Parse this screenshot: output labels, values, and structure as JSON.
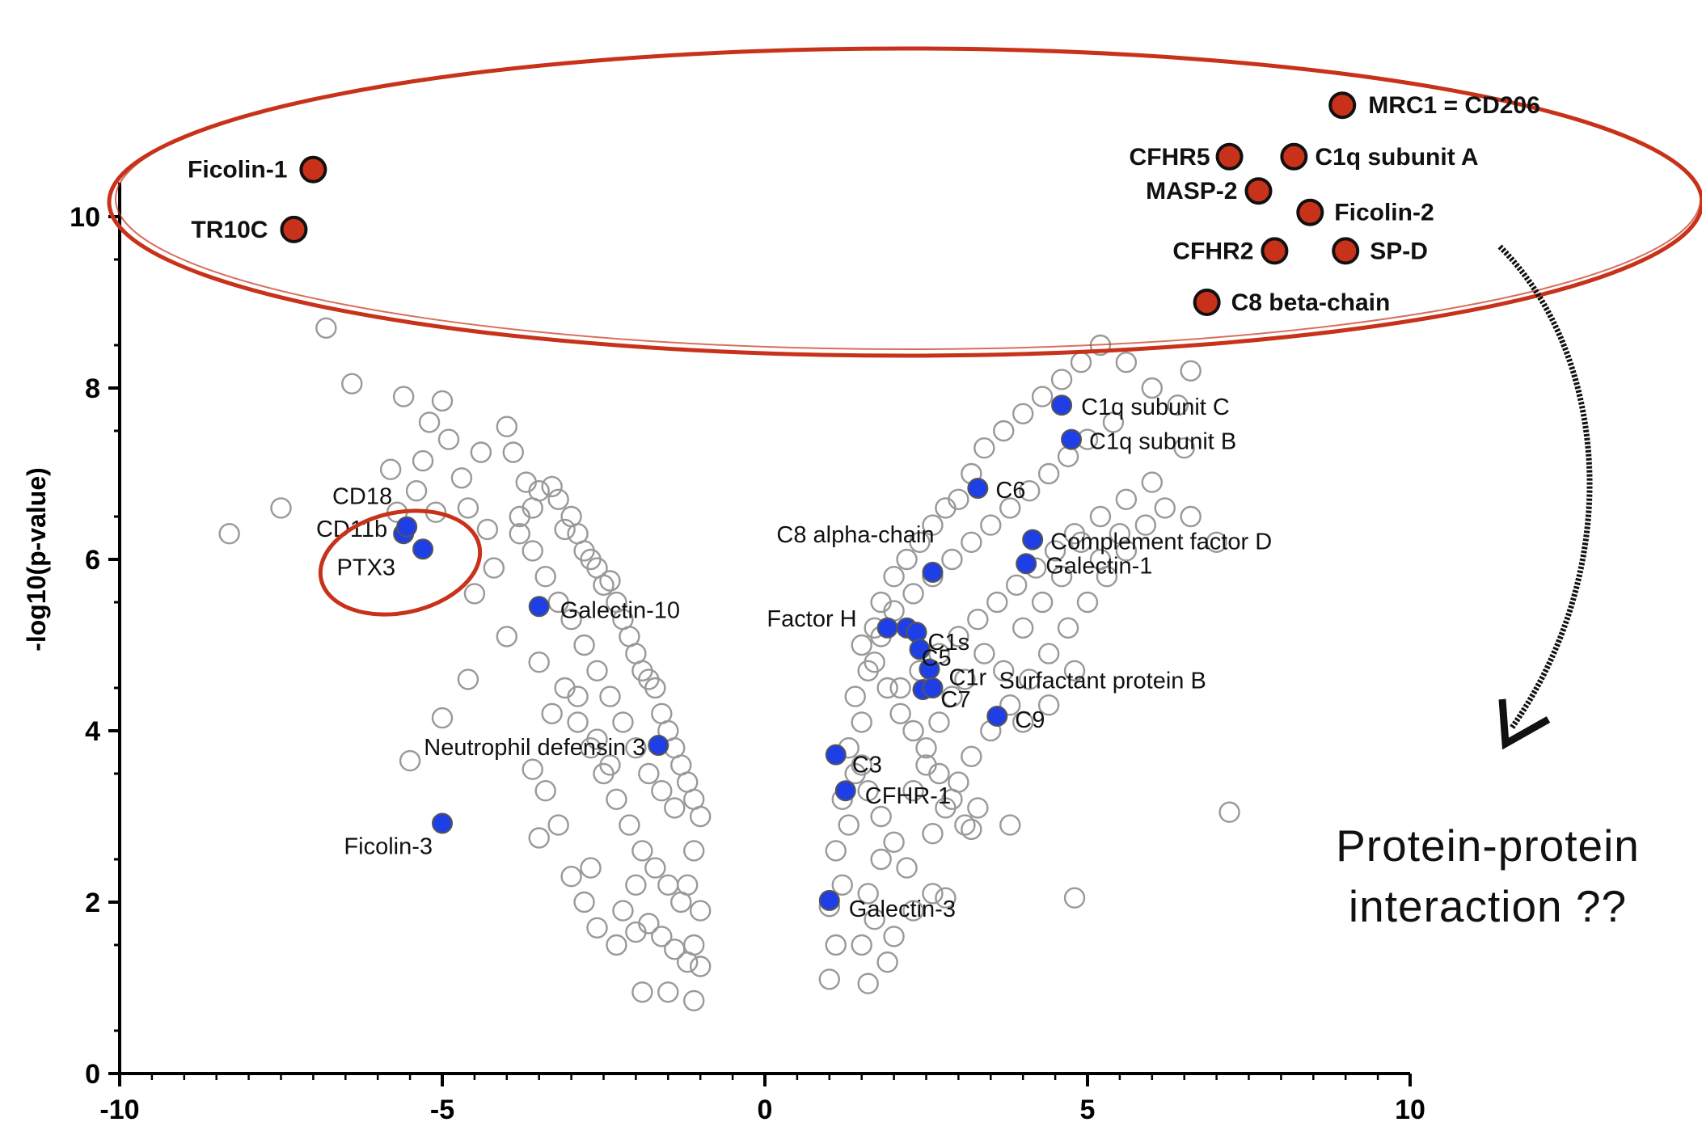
{
  "chart_data": {
    "type": "scatter",
    "title": "",
    "xlabel": "",
    "ylabel": "-log10(p-value)",
    "xlim": [
      -10,
      10
    ],
    "ylim": [
      0,
      12
    ],
    "xticks": [
      -10,
      -5,
      0,
      5,
      10
    ],
    "yticks": [
      0,
      2,
      4,
      6,
      8,
      10
    ],
    "xtick_labels": [
      "-10",
      "-5",
      "0",
      "5",
      "10"
    ],
    "ytick_labels": [
      "0",
      "2",
      "4",
      "6",
      "8",
      "10"
    ],
    "grid": false,
    "series": [
      {
        "color": "#999999",
        "style": "open",
        "points": [
          [
            -8.3,
            6.3
          ],
          [
            -7.5,
            6.6
          ],
          [
            -6.8,
            8.7
          ],
          [
            -6.4,
            8.05
          ],
          [
            -5.8,
            7.05
          ],
          [
            -5.6,
            7.9
          ],
          [
            -5.4,
            6.8
          ],
          [
            -5.2,
            7.6
          ],
          [
            -5.0,
            7.85
          ],
          [
            -4.9,
            7.4
          ],
          [
            -5.3,
            7.15
          ],
          [
            -5.7,
            6.55
          ],
          [
            -5.1,
            6.55
          ],
          [
            -4.7,
            6.95
          ],
          [
            -4.6,
            6.6
          ],
          [
            -4.4,
            7.25
          ],
          [
            -4.3,
            6.35
          ],
          [
            -4.5,
            5.6
          ],
          [
            -4.2,
            5.9
          ],
          [
            -4.0,
            7.55
          ],
          [
            -3.9,
            7.25
          ],
          [
            -3.7,
            6.9
          ],
          [
            -3.8,
            6.5
          ],
          [
            -3.6,
            6.6
          ],
          [
            -3.5,
            6.8
          ],
          [
            -3.3,
            6.85
          ],
          [
            -3.2,
            6.7
          ],
          [
            -3.1,
            6.35
          ],
          [
            -3.0,
            6.5
          ],
          [
            -2.9,
            6.3
          ],
          [
            -2.8,
            6.1
          ],
          [
            -2.7,
            6.0
          ],
          [
            -2.6,
            5.9
          ],
          [
            -2.5,
            5.7
          ],
          [
            -2.4,
            5.75
          ],
          [
            -2.3,
            5.5
          ],
          [
            -2.2,
            5.3
          ],
          [
            -2.1,
            5.1
          ],
          [
            -2.0,
            4.9
          ],
          [
            -1.9,
            4.7
          ],
          [
            -1.8,
            4.6
          ],
          [
            -1.7,
            4.5
          ],
          [
            -1.6,
            4.2
          ],
          [
            -1.5,
            4.0
          ],
          [
            -1.4,
            3.8
          ],
          [
            -1.3,
            3.6
          ],
          [
            -1.2,
            3.4
          ],
          [
            -1.1,
            3.2
          ],
          [
            -1.0,
            3.0
          ],
          [
            -1.1,
            2.6
          ],
          [
            -1.2,
            2.2
          ],
          [
            -1.0,
            1.9
          ],
          [
            -1.1,
            1.5
          ],
          [
            -1.0,
            1.25
          ],
          [
            -1.1,
            0.85
          ],
          [
            -1.5,
            0.95
          ],
          [
            -1.9,
            0.95
          ],
          [
            -2.3,
            1.5
          ],
          [
            -2.6,
            1.7
          ],
          [
            -2.8,
            2.0
          ],
          [
            -3.0,
            2.3
          ],
          [
            -3.2,
            2.9
          ],
          [
            -3.4,
            3.3
          ],
          [
            -3.6,
            3.55
          ],
          [
            -3.3,
            4.2
          ],
          [
            -3.1,
            4.5
          ],
          [
            -2.9,
            4.1
          ],
          [
            -2.7,
            3.8
          ],
          [
            -2.5,
            3.5
          ],
          [
            -2.3,
            3.2
          ],
          [
            -2.1,
            2.9
          ],
          [
            -1.9,
            2.6
          ],
          [
            -1.7,
            2.4
          ],
          [
            -1.5,
            2.2
          ],
          [
            -1.3,
            2.0
          ],
          [
            -2.2,
            1.9
          ],
          [
            -2.0,
            2.2
          ],
          [
            -1.8,
            1.75
          ],
          [
            -1.6,
            1.6
          ],
          [
            -1.4,
            1.45
          ],
          [
            -1.2,
            1.3
          ],
          [
            -2.4,
            4.4
          ],
          [
            -2.6,
            4.7
          ],
          [
            -2.8,
            5.0
          ],
          [
            -3.0,
            5.3
          ],
          [
            -3.2,
            5.5
          ],
          [
            -3.4,
            5.8
          ],
          [
            -3.6,
            6.1
          ],
          [
            -3.8,
            6.3
          ],
          [
            -2.2,
            4.1
          ],
          [
            -2.0,
            3.8
          ],
          [
            -1.8,
            3.5
          ],
          [
            -1.6,
            3.3
          ],
          [
            -1.4,
            3.1
          ],
          [
            -2.4,
            3.6
          ],
          [
            -2.6,
            3.9
          ],
          [
            -2.9,
            4.4
          ],
          [
            -3.5,
            4.8
          ],
          [
            -4.0,
            5.1
          ],
          [
            -4.6,
            4.6
          ],
          [
            -5.0,
            4.15
          ],
          [
            -5.5,
            3.65
          ],
          [
            -3.5,
            2.75
          ],
          [
            -2.7,
            2.4
          ],
          [
            -2.0,
            1.65
          ],
          [
            1.0,
            1.1
          ],
          [
            1.1,
            1.5
          ],
          [
            1.0,
            1.95
          ],
          [
            1.2,
            2.2
          ],
          [
            1.1,
            2.6
          ],
          [
            1.3,
            2.9
          ],
          [
            1.2,
            3.2
          ],
          [
            1.4,
            3.5
          ],
          [
            1.3,
            3.8
          ],
          [
            1.5,
            4.1
          ],
          [
            1.4,
            4.4
          ],
          [
            1.6,
            4.7
          ],
          [
            1.5,
            5.0
          ],
          [
            1.7,
            5.2
          ],
          [
            1.8,
            5.5
          ],
          [
            2.0,
            5.8
          ],
          [
            2.2,
            6.0
          ],
          [
            2.4,
            6.2
          ],
          [
            2.6,
            6.4
          ],
          [
            2.8,
            6.6
          ],
          [
            3.0,
            6.7
          ],
          [
            3.2,
            7.0
          ],
          [
            3.4,
            7.3
          ],
          [
            3.7,
            7.5
          ],
          [
            4.0,
            7.7
          ],
          [
            4.3,
            7.9
          ],
          [
            4.6,
            8.1
          ],
          [
            4.9,
            8.3
          ],
          [
            5.2,
            8.5
          ],
          [
            5.6,
            8.3
          ],
          [
            6.0,
            8.0
          ],
          [
            6.4,
            7.8
          ],
          [
            6.6,
            8.2
          ],
          [
            5.4,
            7.6
          ],
          [
            5.0,
            7.4
          ],
          [
            4.7,
            7.2
          ],
          [
            4.4,
            7.0
          ],
          [
            4.1,
            6.8
          ],
          [
            3.8,
            6.6
          ],
          [
            3.5,
            6.4
          ],
          [
            3.2,
            6.2
          ],
          [
            2.9,
            6.0
          ],
          [
            2.6,
            5.8
          ],
          [
            2.3,
            5.6
          ],
          [
            2.0,
            5.4
          ],
          [
            1.8,
            5.1
          ],
          [
            1.7,
            4.8
          ],
          [
            1.9,
            4.5
          ],
          [
            2.1,
            4.2
          ],
          [
            2.3,
            4.0
          ],
          [
            2.5,
            3.8
          ],
          [
            2.7,
            3.5
          ],
          [
            2.9,
            3.2
          ],
          [
            3.1,
            2.9
          ],
          [
            3.3,
            3.1
          ],
          [
            1.5,
            3.6
          ],
          [
            1.6,
            3.3
          ],
          [
            1.8,
            3.0
          ],
          [
            2.0,
            2.7
          ],
          [
            2.2,
            2.4
          ],
          [
            1.6,
            2.1
          ],
          [
            1.7,
            1.8
          ],
          [
            1.5,
            1.5
          ],
          [
            1.9,
            1.3
          ],
          [
            2.0,
            1.6
          ],
          [
            2.3,
            1.9
          ],
          [
            1.6,
            1.05
          ],
          [
            2.6,
            2.8
          ],
          [
            2.8,
            3.1
          ],
          [
            3.0,
            3.4
          ],
          [
            3.2,
            3.7
          ],
          [
            3.5,
            4.0
          ],
          [
            3.8,
            4.3
          ],
          [
            4.1,
            4.6
          ],
          [
            4.4,
            4.9
          ],
          [
            4.7,
            5.2
          ],
          [
            5.0,
            5.5
          ],
          [
            5.3,
            5.8
          ],
          [
            5.6,
            6.1
          ],
          [
            5.9,
            6.4
          ],
          [
            6.2,
            6.6
          ],
          [
            6.6,
            6.5
          ],
          [
            7.0,
            6.2
          ],
          [
            6.5,
            7.3
          ],
          [
            6.0,
            6.9
          ],
          [
            5.6,
            6.7
          ],
          [
            5.2,
            6.5
          ],
          [
            4.8,
            6.3
          ],
          [
            4.5,
            6.1
          ],
          [
            4.2,
            5.9
          ],
          [
            3.9,
            5.7
          ],
          [
            3.6,
            5.5
          ],
          [
            3.3,
            5.3
          ],
          [
            3.0,
            5.1
          ],
          [
            2.7,
            4.9
          ],
          [
            2.4,
            4.7
          ],
          [
            2.1,
            4.5
          ],
          [
            4.0,
            5.2
          ],
          [
            4.3,
            5.5
          ],
          [
            4.6,
            5.8
          ],
          [
            4.9,
            6.2
          ],
          [
            5.2,
            6.0
          ],
          [
            5.5,
            6.3
          ],
          [
            4.8,
            4.7
          ],
          [
            4.4,
            4.3
          ],
          [
            4.0,
            4.1
          ],
          [
            3.7,
            4.7
          ],
          [
            3.4,
            4.9
          ],
          [
            3.1,
            4.6
          ],
          [
            2.9,
            4.4
          ],
          [
            2.7,
            4.1
          ],
          [
            2.5,
            3.6
          ],
          [
            2.3,
            3.3
          ],
          [
            7.2,
            3.05
          ],
          [
            4.8,
            2.05
          ],
          [
            3.8,
            2.9
          ],
          [
            3.2,
            2.85
          ],
          [
            2.6,
            2.1
          ],
          [
            2.8,
            2.05
          ],
          [
            1.8,
            2.5
          ]
        ]
      },
      {
        "color": "#1f3fe6",
        "style": "filled",
        "points": [
          [
            -5.6,
            6.3
          ],
          [
            -5.55,
            6.38
          ],
          [
            -5.3,
            6.12
          ],
          [
            -3.5,
            5.45
          ],
          [
            -1.65,
            3.83
          ],
          [
            -5.0,
            2.92
          ],
          [
            4.6,
            7.8
          ],
          [
            4.75,
            7.4
          ],
          [
            3.3,
            6.83
          ],
          [
            2.6,
            5.85
          ],
          [
            4.15,
            6.23
          ],
          [
            4.05,
            5.95
          ],
          [
            1.9,
            5.2
          ],
          [
            2.2,
            5.2
          ],
          [
            2.35,
            5.15
          ],
          [
            2.4,
            4.95
          ],
          [
            2.55,
            4.72
          ],
          [
            2.45,
            4.48
          ],
          [
            2.6,
            4.5
          ],
          [
            3.6,
            4.17
          ],
          [
            1.1,
            3.72
          ],
          [
            1.25,
            3.3
          ],
          [
            1.0,
            2.02
          ]
        ]
      },
      {
        "color": "#c8321a",
        "style": "filled-outlined",
        "points": [
          [
            -7.0,
            10.55
          ],
          [
            -7.3,
            9.85
          ],
          [
            8.95,
            11.3
          ],
          [
            7.2,
            10.7
          ],
          [
            8.2,
            10.7
          ],
          [
            7.65,
            10.3
          ],
          [
            8.45,
            10.05
          ],
          [
            7.9,
            9.6
          ],
          [
            9.0,
            9.6
          ],
          [
            6.85,
            9.0
          ]
        ]
      }
    ],
    "annotations": [
      {
        "text": "Ficolin-1",
        "x": -7.0,
        "y": 10.55,
        "group": "red"
      },
      {
        "text": "TR10C",
        "x": -7.3,
        "y": 9.85,
        "group": "red"
      },
      {
        "text": "MRC1 = CD206",
        "x": 8.95,
        "y": 11.3,
        "group": "red"
      },
      {
        "text": "CFHR5",
        "x": 7.2,
        "y": 10.7,
        "group": "red"
      },
      {
        "text": "C1q subunit A",
        "x": 8.2,
        "y": 10.7,
        "group": "red"
      },
      {
        "text": "MASP-2",
        "x": 7.65,
        "y": 10.3,
        "group": "red"
      },
      {
        "text": "Ficolin-2",
        "x": 8.45,
        "y": 10.05,
        "group": "red"
      },
      {
        "text": "CFHR2",
        "x": 7.9,
        "y": 9.6,
        "group": "red"
      },
      {
        "text": "SP-D",
        "x": 9.0,
        "y": 9.6,
        "group": "red"
      },
      {
        "text": "C8 beta-chain",
        "x": 6.85,
        "y": 9.0,
        "group": "red"
      },
      {
        "text": "CD18",
        "x": -5.55,
        "y": 6.38,
        "group": "blue"
      },
      {
        "text": "CD11b",
        "x": -5.6,
        "y": 6.3,
        "group": "blue"
      },
      {
        "text": "PTX3",
        "x": -5.3,
        "y": 6.12,
        "group": "blue"
      },
      {
        "text": "Galectin-10",
        "x": -3.5,
        "y": 5.45,
        "group": "blue"
      },
      {
        "text": "Neutrophil defensin 3",
        "x": -1.65,
        "y": 3.83,
        "group": "blue"
      },
      {
        "text": "Ficolin-3",
        "x": -5.0,
        "y": 2.92,
        "group": "blue"
      },
      {
        "text": "C1q  subunit C",
        "x": 4.6,
        "y": 7.8,
        "group": "blue"
      },
      {
        "text": "C1q subunit B",
        "x": 4.75,
        "y": 7.4,
        "group": "blue"
      },
      {
        "text": "C6",
        "x": 3.3,
        "y": 6.83,
        "group": "blue"
      },
      {
        "text": "C8 alpha-chain",
        "x": 2.6,
        "y": 5.85,
        "group": "blue"
      },
      {
        "text": "Complement factor D",
        "x": 4.15,
        "y": 6.23,
        "group": "blue"
      },
      {
        "text": "Galectin-1",
        "x": 4.05,
        "y": 5.95,
        "group": "blue"
      },
      {
        "text": "Factor H",
        "x": 1.9,
        "y": 5.2,
        "group": "blue"
      },
      {
        "text": "C1s",
        "x": 2.35,
        "y": 5.15,
        "group": "blue"
      },
      {
        "text": "C5",
        "x": 2.4,
        "y": 4.95,
        "group": "blue"
      },
      {
        "text": "C1r",
        "x": 2.55,
        "y": 4.72,
        "group": "blue"
      },
      {
        "text": "Surfactant protein B",
        "x": 2.55,
        "y": 4.72,
        "group": "blue"
      },
      {
        "text": "C7",
        "x": 2.45,
        "y": 4.48,
        "group": "blue"
      },
      {
        "text": "C9",
        "x": 3.6,
        "y": 4.17,
        "group": "blue"
      },
      {
        "text": "C3",
        "x": 1.1,
        "y": 3.72,
        "group": "blue"
      },
      {
        "text": "CFHR-1",
        "x": 1.25,
        "y": 3.3,
        "group": "blue"
      },
      {
        "text": "Galectin-3",
        "x": 1.0,
        "y": 2.02,
        "group": "blue"
      }
    ],
    "side_note": [
      "Protein-protein",
      "interaction ??"
    ]
  },
  "colors": {
    "highlight_ring": "#c8321a",
    "open_marker": "#999999",
    "blue_marker": "#1f3fe6",
    "red_marker": "#c8321a",
    "axis": "#000000"
  }
}
